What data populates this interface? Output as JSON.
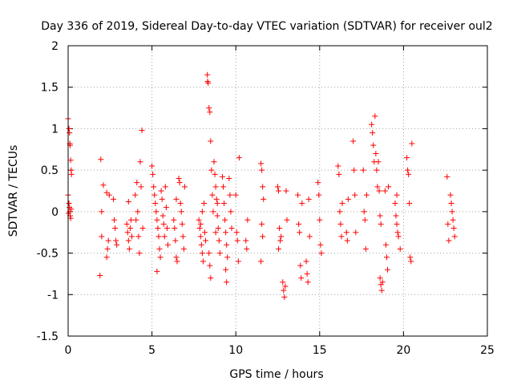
{
  "chart_data": {
    "type": "scatter",
    "title": "Day 336 of 2019, Sidereal Day-to-day VTEC variation (SDTVAR) for receiver oul2",
    "xlabel": "GPS time / hours",
    "ylabel": "SDTVAR / TECUs",
    "xlim": [
      0,
      25
    ],
    "ylim": [
      -1.5,
      2
    ],
    "xticks": [
      0,
      5,
      10,
      15,
      20,
      25
    ],
    "yticks": [
      -1.5,
      -1,
      -0.5,
      0,
      0.5,
      1,
      1.5,
      2
    ],
    "xtick_labels": [
      "0",
      "5",
      "10",
      "15",
      "20",
      "25"
    ],
    "ytick_labels": [
      "-1.5",
      "-1",
      "-0.5",
      "0",
      "0.5",
      "1",
      "1.5",
      "2"
    ],
    "grid": true,
    "marker": "plus",
    "marker_color": "#ff0000",
    "series": [
      {
        "name": "SDTVAR",
        "points": [
          [
            0.0,
            1.12
          ],
          [
            0.05,
            1.0
          ],
          [
            0.08,
            0.95
          ],
          [
            0.1,
            0.82
          ],
          [
            0.12,
            0.8
          ],
          [
            0.15,
            0.62
          ],
          [
            0.18,
            0.5
          ],
          [
            0.2,
            0.45
          ],
          [
            0.0,
            0.2
          ],
          [
            0.05,
            0.1
          ],
          [
            0.08,
            0.05
          ],
          [
            0.1,
            0.0
          ],
          [
            0.12,
            -0.05
          ],
          [
            0.15,
            -0.08
          ],
          [
            0.02,
            -0.02
          ],
          [
            0.18,
            0.03
          ],
          [
            1.9,
            -0.77
          ],
          [
            2.0,
            -0.3
          ],
          [
            2.0,
            0.0
          ],
          [
            2.1,
            0.32
          ],
          [
            1.95,
            0.63
          ],
          [
            2.3,
            -0.55
          ],
          [
            2.35,
            -0.45
          ],
          [
            2.4,
            -0.35
          ],
          [
            2.3,
            0.23
          ],
          [
            2.45,
            0.2
          ],
          [
            2.7,
            0.15
          ],
          [
            2.75,
            -0.1
          ],
          [
            2.8,
            -0.2
          ],
          [
            2.85,
            -0.35
          ],
          [
            2.9,
            -0.4
          ],
          [
            3.5,
            -0.15
          ],
          [
            3.55,
            -0.25
          ],
          [
            3.6,
            -0.35
          ],
          [
            3.65,
            -0.45
          ],
          [
            3.7,
            -0.2
          ],
          [
            3.75,
            -0.1
          ],
          [
            3.6,
            0.12
          ],
          [
            3.8,
            -0.3
          ],
          [
            4.0,
            0.2
          ],
          [
            4.05,
            -0.1
          ],
          [
            4.1,
            0.35
          ],
          [
            4.15,
            0.0
          ],
          [
            4.2,
            -0.3
          ],
          [
            4.25,
            -0.5
          ],
          [
            4.3,
            0.6
          ],
          [
            4.35,
            0.3
          ],
          [
            4.4,
            0.98
          ],
          [
            4.45,
            -0.2
          ],
          [
            5.0,
            0.55
          ],
          [
            5.05,
            0.45
          ],
          [
            5.1,
            0.3
          ],
          [
            5.15,
            0.2
          ],
          [
            5.2,
            0.1
          ],
          [
            5.25,
            0.0
          ],
          [
            5.3,
            -0.1
          ],
          [
            5.35,
            -0.2
          ],
          [
            5.4,
            -0.3
          ],
          [
            5.45,
            -0.45
          ],
          [
            5.5,
            -0.55
          ],
          [
            5.3,
            -0.72
          ],
          [
            5.55,
            0.25
          ],
          [
            5.6,
            0.15
          ],
          [
            5.65,
            -0.05
          ],
          [
            5.7,
            -0.15
          ],
          [
            5.75,
            -0.3
          ],
          [
            5.8,
            0.3
          ],
          [
            5.85,
            0.05
          ],
          [
            5.9,
            -0.2
          ],
          [
            5.95,
            -0.4
          ],
          [
            6.3,
            -0.1
          ],
          [
            6.35,
            -0.2
          ],
          [
            6.4,
            -0.35
          ],
          [
            6.45,
            -0.55
          ],
          [
            6.5,
            -0.6
          ],
          [
            6.45,
            0.15
          ],
          [
            6.6,
            0.4
          ],
          [
            6.65,
            0.35
          ],
          [
            6.7,
            0.1
          ],
          [
            6.75,
            0.0
          ],
          [
            6.8,
            -0.15
          ],
          [
            6.85,
            -0.3
          ],
          [
            6.9,
            -0.45
          ],
          [
            6.95,
            0.3
          ],
          [
            7.8,
            -0.1
          ],
          [
            7.85,
            -0.2
          ],
          [
            7.9,
            -0.3
          ],
          [
            7.95,
            -0.4
          ],
          [
            8.0,
            -0.5
          ],
          [
            8.05,
            -0.6
          ],
          [
            7.9,
            -0.15
          ],
          [
            8.0,
            0.0
          ],
          [
            8.1,
            0.1
          ],
          [
            8.15,
            -0.25
          ],
          [
            8.2,
            -0.35
          ],
          [
            8.3,
            1.65
          ],
          [
            8.32,
            1.57
          ],
          [
            8.35,
            1.55
          ],
          [
            8.4,
            1.25
          ],
          [
            8.45,
            1.2
          ],
          [
            8.5,
            0.85
          ],
          [
            8.55,
            0.5
          ],
          [
            8.6,
            0.2
          ],
          [
            8.65,
            0.0
          ],
          [
            8.4,
            -0.5
          ],
          [
            8.45,
            -0.65
          ],
          [
            8.5,
            -0.8
          ],
          [
            8.7,
            0.6
          ],
          [
            8.75,
            0.45
          ],
          [
            8.8,
            0.3
          ],
          [
            8.85,
            0.15
          ],
          [
            8.9,
            -0.05
          ],
          [
            8.95,
            -0.2
          ],
          [
            9.0,
            -0.35
          ],
          [
            9.05,
            -0.5
          ],
          [
            8.8,
            -0.25
          ],
          [
            8.9,
            0.1
          ],
          [
            9.2,
            0.42
          ],
          [
            9.25,
            0.3
          ],
          [
            9.3,
            0.1
          ],
          [
            9.35,
            -0.1
          ],
          [
            9.4,
            -0.25
          ],
          [
            9.45,
            -0.4
          ],
          [
            9.5,
            -0.55
          ],
          [
            9.4,
            -0.7
          ],
          [
            9.45,
            -0.85
          ],
          [
            9.6,
            0.4
          ],
          [
            9.65,
            0.2
          ],
          [
            9.7,
            0.0
          ],
          [
            9.75,
            -0.2
          ],
          [
            10.0,
            0.2
          ],
          [
            10.05,
            -0.25
          ],
          [
            10.1,
            -0.35
          ],
          [
            10.15,
            -0.6
          ],
          [
            10.2,
            0.65
          ],
          [
            10.6,
            -0.35
          ],
          [
            10.65,
            -0.45
          ],
          [
            10.7,
            -0.1
          ],
          [
            11.5,
            0.58
          ],
          [
            11.55,
            0.5
          ],
          [
            11.6,
            0.3
          ],
          [
            11.65,
            0.15
          ],
          [
            11.55,
            -0.15
          ],
          [
            11.6,
            -0.3
          ],
          [
            11.5,
            -0.6
          ],
          [
            12.5,
            0.3
          ],
          [
            12.55,
            0.25
          ],
          [
            12.6,
            -0.2
          ],
          [
            12.65,
            -0.35
          ],
          [
            12.7,
            -0.3
          ],
          [
            12.55,
            -0.45
          ],
          [
            12.8,
            -0.85
          ],
          [
            12.85,
            -0.95
          ],
          [
            12.9,
            -1.03
          ],
          [
            12.95,
            -0.9
          ],
          [
            13.0,
            0.25
          ],
          [
            13.05,
            -0.1
          ],
          [
            13.7,
            0.2
          ],
          [
            13.75,
            -0.15
          ],
          [
            13.8,
            -0.25
          ],
          [
            13.85,
            -0.65
          ],
          [
            13.9,
            -0.8
          ],
          [
            13.95,
            0.1
          ],
          [
            14.2,
            -0.6
          ],
          [
            14.25,
            -0.75
          ],
          [
            14.3,
            -0.85
          ],
          [
            14.35,
            0.15
          ],
          [
            14.4,
            -0.3
          ],
          [
            14.9,
            0.35
          ],
          [
            14.95,
            0.2
          ],
          [
            15.0,
            -0.1
          ],
          [
            15.05,
            -0.4
          ],
          [
            15.1,
            -0.5
          ],
          [
            16.1,
            0.55
          ],
          [
            16.15,
            0.45
          ],
          [
            16.2,
            0.0
          ],
          [
            16.25,
            -0.15
          ],
          [
            16.3,
            -0.3
          ],
          [
            16.35,
            0.1
          ],
          [
            16.6,
            -0.25
          ],
          [
            16.65,
            -0.35
          ],
          [
            16.7,
            0.15
          ],
          [
            17.0,
            0.85
          ],
          [
            17.05,
            0.5
          ],
          [
            17.1,
            0.2
          ],
          [
            17.15,
            -0.25
          ],
          [
            17.6,
            0.5
          ],
          [
            17.65,
            0.0
          ],
          [
            17.7,
            -0.1
          ],
          [
            17.75,
            -0.45
          ],
          [
            17.8,
            0.2
          ],
          [
            18.1,
            1.05
          ],
          [
            18.15,
            0.95
          ],
          [
            18.2,
            0.8
          ],
          [
            18.25,
            0.6
          ],
          [
            18.3,
            1.15
          ],
          [
            18.35,
            0.7
          ],
          [
            18.4,
            0.5
          ],
          [
            18.45,
            0.3
          ],
          [
            18.5,
            0.6
          ],
          [
            18.55,
            0.25
          ],
          [
            18.6,
            -0.05
          ],
          [
            18.65,
            -0.15
          ],
          [
            18.6,
            -0.8
          ],
          [
            18.65,
            -0.88
          ],
          [
            18.7,
            -0.95
          ],
          [
            18.75,
            -0.85
          ],
          [
            18.9,
            0.25
          ],
          [
            18.95,
            -0.4
          ],
          [
            19.0,
            -0.55
          ],
          [
            19.05,
            -0.7
          ],
          [
            19.1,
            0.3
          ],
          [
            19.5,
            0.1
          ],
          [
            19.55,
            -0.05
          ],
          [
            19.6,
            -0.15
          ],
          [
            19.65,
            -0.25
          ],
          [
            19.7,
            -0.3
          ],
          [
            19.6,
            0.2
          ],
          [
            19.8,
            -0.45
          ],
          [
            20.2,
            0.65
          ],
          [
            20.25,
            0.5
          ],
          [
            20.3,
            0.45
          ],
          [
            20.35,
            0.1
          ],
          [
            20.4,
            -0.55
          ],
          [
            20.45,
            -0.6
          ],
          [
            20.5,
            0.82
          ],
          [
            22.6,
            0.42
          ],
          [
            22.65,
            -0.15
          ],
          [
            22.7,
            -0.35
          ],
          [
            22.8,
            0.2
          ],
          [
            22.85,
            0.1
          ],
          [
            22.9,
            0.0
          ],
          [
            22.95,
            -0.1
          ],
          [
            23.0,
            -0.2
          ],
          [
            23.05,
            -0.3
          ]
        ]
      }
    ]
  }
}
